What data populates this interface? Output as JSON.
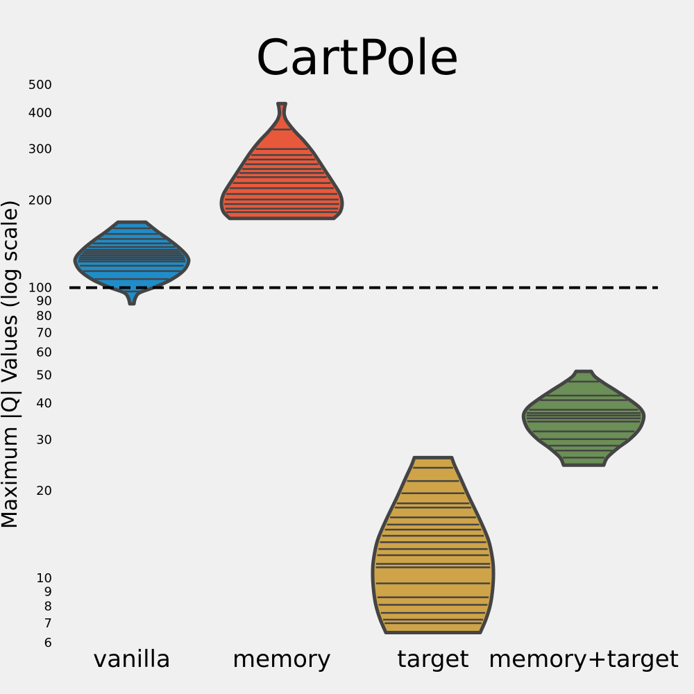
{
  "chart_data": {
    "type": "violin",
    "title": "CartPole",
    "ylabel": "Maximum |Q| Values (log scale)",
    "y_scale": "log",
    "ylim": [
      5.6,
      560
    ],
    "y_ticks": [
      "6",
      "7",
      "8",
      "9",
      "10",
      "20",
      "30",
      "40",
      "50",
      "60",
      "70",
      "80",
      "90",
      "100",
      "200",
      "300",
      "400",
      "500"
    ],
    "reference_line": {
      "y": 100,
      "style": "dashed",
      "color": "#000000"
    },
    "categories": [
      "vanilla",
      "memory",
      "target",
      "memory+target"
    ],
    "series": [
      {
        "category": "vanilla",
        "color": "#1f8dc9",
        "min": 88,
        "max": 168,
        "profile": [
          [
            88,
            6
          ],
          [
            92,
            10
          ],
          [
            96,
            22
          ],
          [
            100,
            62
          ],
          [
            106,
            110
          ],
          [
            114,
            148
          ],
          [
            122,
            163
          ],
          [
            128,
            160
          ],
          [
            136,
            140
          ],
          [
            146,
            108
          ],
          [
            156,
            74
          ],
          [
            168,
            40
          ]
        ],
        "observations": [
          133,
          131,
          129,
          127,
          135,
          125,
          138,
          123,
          142,
          119,
          147,
          114,
          153,
          107,
          160,
          97
        ]
      },
      {
        "category": "memory",
        "color": "#e8593c",
        "min": 173,
        "max": 430,
        "profile": [
          [
            173,
            150
          ],
          [
            182,
            168
          ],
          [
            195,
            174
          ],
          [
            210,
            168
          ],
          [
            228,
            150
          ],
          [
            250,
            128
          ],
          [
            272,
            108
          ],
          [
            295,
            88
          ],
          [
            320,
            64
          ],
          [
            345,
            38
          ],
          [
            375,
            14
          ],
          [
            395,
            7
          ],
          [
            415,
            8
          ],
          [
            430,
            11
          ]
        ],
        "observations": [
          174,
          182,
          187,
          194,
          201,
          210,
          220,
          229,
          240,
          248,
          256,
          266,
          276,
          286,
          300,
          350
        ]
      },
      {
        "category": "target",
        "color": "#cfa448",
        "min": 6.5,
        "max": 26,
        "profile": [
          [
            6.5,
            136
          ],
          [
            7.2,
            152
          ],
          [
            8,
            164
          ],
          [
            9,
            171
          ],
          [
            10.2,
            174
          ],
          [
            11.5,
            172
          ],
          [
            13.5,
            160
          ],
          [
            16,
            134
          ],
          [
            19,
            104
          ],
          [
            22,
            80
          ],
          [
            24.5,
            62
          ],
          [
            26,
            54
          ]
        ],
        "observations": [
          7.0,
          7.2,
          7.6,
          8.1,
          8.6,
          9.6,
          10.9,
          11.2,
          12.0,
          12.6,
          13.3,
          14.0,
          14.7,
          15.3,
          16.2,
          17.5,
          18.1,
          19.6,
          21.6,
          24.0
        ]
      },
      {
        "category": "memory+target",
        "color": "#6b8f56",
        "min": 24.5,
        "max": 51.5,
        "profile": [
          [
            24.5,
            58
          ],
          [
            26,
            68
          ],
          [
            28,
            98
          ],
          [
            30,
            132
          ],
          [
            32.5,
            160
          ],
          [
            35,
            172
          ],
          [
            37,
            172
          ],
          [
            39,
            158
          ],
          [
            41.5,
            128
          ],
          [
            44,
            96
          ],
          [
            47,
            58
          ],
          [
            49.5,
            32
          ],
          [
            51.5,
            22
          ]
        ],
        "observations": [
          26.0,
          27.5,
          28.6,
          30.1,
          32.0,
          34.6,
          35.5,
          36.3,
          37.0,
          38.0,
          41.0,
          42.5,
          47.5
        ]
      }
    ]
  }
}
